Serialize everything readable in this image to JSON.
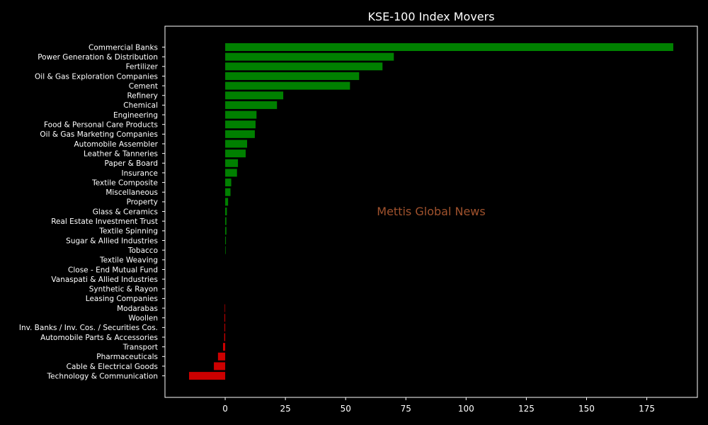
{
  "chart_data": {
    "type": "bar",
    "orientation": "horizontal",
    "title": "KSE-100 Index Movers",
    "xlabel": "",
    "ylabel": "",
    "xlim": [
      -25,
      196
    ],
    "x_ticks": [
      0,
      25,
      50,
      75,
      100,
      125,
      150,
      175
    ],
    "grid": false,
    "legend": "none",
    "watermark": "Mettis Global News",
    "colors": {
      "background": "#000000",
      "axes": "#ffffff",
      "positive": "#008000",
      "negative": "#cc0000",
      "watermark": "#a0522d"
    },
    "categories": [
      "Commercial Banks",
      "Power Generation & Distribution",
      "Fertilizer",
      "Oil & Gas Exploration Companies",
      "Cement",
      "Refinery",
      "Chemical",
      "Engineering",
      "Food & Personal Care Products",
      "Oil & Gas Marketing Companies",
      "Automobile Assembler",
      "Leather & Tanneries",
      "Paper & Board",
      "Insurance",
      "Textile Composite",
      "Miscellaneous",
      "Property",
      "Glass & Ceramics",
      "Real Estate Investment Trust",
      "Textile Spinning",
      "Sugar & Allied Industries",
      "Tobacco",
      "Textile Weaving",
      "Close - End Mutual Fund",
      "Vanaspati & Allied Industries",
      "Synthetic & Rayon",
      "Leasing Companies",
      "Modarabas",
      "Woollen",
      "Inv. Banks / Inv. Cos. / Securities Cos.",
      "Automobile Parts & Accessories",
      "Transport",
      "Pharmaceuticals",
      "Cable & Electrical Goods",
      "Technology & Communication"
    ],
    "values": [
      186,
      70,
      65.3,
      55.6,
      51.8,
      24.1,
      21.5,
      13.0,
      12.6,
      12.3,
      9.1,
      8.5,
      5.3,
      4.9,
      2.5,
      2.2,
      1.2,
      0.7,
      0.5,
      0.5,
      0.3,
      0.2,
      0,
      0,
      0,
      0,
      0,
      -0.2,
      -0.3,
      -0.3,
      -0.4,
      -0.9,
      -3.0,
      -4.7,
      -15.0
    ]
  }
}
